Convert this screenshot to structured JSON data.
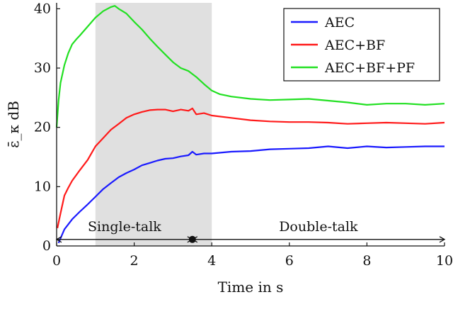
{
  "chart_data": {
    "type": "line",
    "xlabel": "Time in s",
    "ylabel": "ε̄_κ dB",
    "xlim": [
      0,
      10
    ],
    "ylim": [
      0,
      41
    ],
    "xticks": [
      0,
      2,
      4,
      6,
      8,
      10
    ],
    "yticks": [
      0,
      10,
      20,
      30,
      40
    ],
    "grid": false,
    "legend": "top-right",
    "shaded_region": {
      "x": [
        1,
        4
      ],
      "color": "#e0e0e0"
    },
    "annotations": {
      "single_talk": {
        "text": "Single-talk",
        "x_range": [
          0,
          3.5
        ]
      },
      "double_talk": {
        "text": "Double-talk",
        "x_range": [
          3.5,
          10
        ]
      },
      "marker_x": 3.5,
      "arrow_y": 1.1
    },
    "series": [
      {
        "name": "AEC",
        "color": "#1a1aff",
        "x": [
          0.05,
          0.2,
          0.4,
          0.6,
          0.8,
          1.0,
          1.2,
          1.4,
          1.6,
          1.8,
          2.0,
          2.2,
          2.4,
          2.6,
          2.8,
          3.0,
          3.2,
          3.4,
          3.5,
          3.6,
          3.8,
          4.0,
          4.5,
          5.0,
          5.5,
          6.0,
          6.5,
          7.0,
          7.5,
          8.0,
          8.5,
          9.0,
          9.5,
          10.0
        ],
        "values": [
          0.5,
          2.8,
          4.5,
          5.8,
          7.0,
          8.3,
          9.6,
          10.6,
          11.6,
          12.3,
          12.9,
          13.6,
          14.0,
          14.4,
          14.7,
          14.8,
          15.1,
          15.3,
          15.9,
          15.4,
          15.6,
          15.6,
          15.9,
          16.0,
          16.3,
          16.4,
          16.5,
          16.8,
          16.5,
          16.8,
          16.6,
          16.7,
          16.8,
          16.8
        ]
      },
      {
        "name": "AEC+BF",
        "color": "#ff1a1a",
        "x": [
          0.02,
          0.1,
          0.2,
          0.3,
          0.4,
          0.6,
          0.8,
          1.0,
          1.2,
          1.4,
          1.6,
          1.8,
          2.0,
          2.2,
          2.4,
          2.6,
          2.8,
          3.0,
          3.2,
          3.4,
          3.5,
          3.6,
          3.8,
          4.0,
          4.5,
          5.0,
          5.5,
          6.0,
          6.5,
          7.0,
          7.5,
          8.0,
          8.5,
          9.0,
          9.5,
          10.0
        ],
        "values": [
          3.0,
          5.5,
          8.5,
          9.8,
          11.0,
          12.8,
          14.5,
          16.8,
          18.2,
          19.6,
          20.6,
          21.6,
          22.2,
          22.6,
          22.9,
          23.0,
          23.0,
          22.7,
          23.0,
          22.8,
          23.2,
          22.2,
          22.4,
          22.0,
          21.6,
          21.2,
          21.0,
          20.9,
          20.9,
          20.8,
          20.6,
          20.7,
          20.8,
          20.7,
          20.6,
          20.8
        ]
      },
      {
        "name": "AEC+BF+PF",
        "color": "#22e022",
        "x": [
          0.0,
          0.05,
          0.1,
          0.2,
          0.3,
          0.4,
          0.5,
          0.6,
          0.8,
          1.0,
          1.2,
          1.4,
          1.5,
          1.6,
          1.8,
          2.0,
          2.2,
          2.4,
          2.6,
          2.8,
          3.0,
          3.2,
          3.4,
          3.6,
          3.8,
          4.0,
          4.2,
          4.5,
          5.0,
          5.5,
          6.0,
          6.5,
          7.0,
          7.5,
          8.0,
          8.5,
          9.0,
          9.5,
          10.0
        ],
        "values": [
          20.0,
          24.5,
          27.5,
          30.5,
          32.5,
          34.0,
          34.8,
          35.5,
          37.0,
          38.5,
          39.6,
          40.3,
          40.5,
          40.0,
          39.2,
          37.8,
          36.5,
          35.0,
          33.6,
          32.3,
          31.0,
          30.0,
          29.5,
          28.5,
          27.3,
          26.2,
          25.6,
          25.2,
          24.8,
          24.6,
          24.7,
          24.8,
          24.5,
          24.2,
          23.8,
          24.0,
          24.0,
          23.8,
          24.0
        ]
      }
    ]
  }
}
